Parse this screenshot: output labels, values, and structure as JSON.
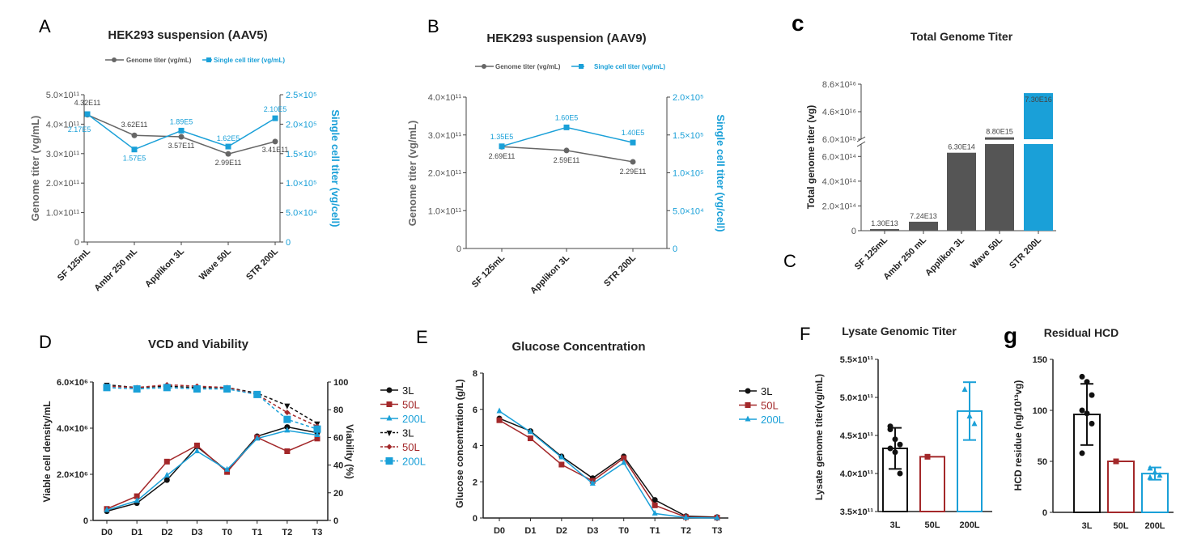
{
  "colors": {
    "gray": "#666666",
    "blue": "#1aa0d8",
    "dark": "#111111",
    "red": "#a3282a",
    "bar": "#555555"
  },
  "chart_data": [
    {
      "id": "A",
      "panel_label": "A",
      "type": "line",
      "title": "HEK293 suspension (AAV5)",
      "categories": [
        "SF 125mL",
        "Ambr 250 mL",
        "Applikon 3L",
        "Wave 50L",
        "STR 200L"
      ],
      "ylabel": "Genome titer (vg/mL)",
      "y2label": "Single cell titer (vg/cell)",
      "ylim": [
        0,
        500000000000.0
      ],
      "y2lim": [
        0,
        250000.0
      ],
      "yticks": [
        "0",
        "1.0×10¹¹",
        "2.0×10¹¹",
        "3.0×10¹¹",
        "4.0×10¹¹",
        "5.0×10¹¹"
      ],
      "y2ticks": [
        "0",
        "5.0×10⁴",
        "1.0×10⁵",
        "1.5×10⁵",
        "2.0×10⁵",
        "2.5×10⁵"
      ],
      "series": [
        {
          "name": "Genome titer (vg/mL)",
          "axis": "left",
          "values": [
            432000000000.0,
            362000000000.0,
            357000000000.0,
            299000000000.0,
            341000000000.0
          ],
          "labels": [
            "4.32E11",
            "3.62E11",
            "3.57E11",
            "2.99E11",
            "3.41E11"
          ]
        },
        {
          "name": "Single cell titer (vg/mL)",
          "axis": "right",
          "values": [
            217000.0,
            157000.0,
            189000.0,
            162000.0,
            210000.0
          ],
          "labels": [
            "2.17E5",
            "1.57E5",
            "1.89E5",
            "1.62E5",
            "2.10E5"
          ]
        }
      ]
    },
    {
      "id": "B",
      "panel_label": "B",
      "type": "line",
      "title": "HEK293 suspension (AAV9)",
      "categories": [
        "SF 125mL",
        "Applikon 3L",
        "STR 200L"
      ],
      "ylabel": "Genome titer (vg/mL)",
      "y2label": "Single cell titer (vg/cell)",
      "ylim": [
        0,
        400000000000.0
      ],
      "y2lim": [
        0,
        200000.0
      ],
      "yticks": [
        "0",
        "1.0×10¹¹",
        "2.0×10¹¹",
        "3.0×10¹¹",
        "4.0×10¹¹"
      ],
      "y2ticks": [
        "0",
        "5.0×10⁴",
        "1.0×10⁵",
        "1.5×10⁵",
        "2.0×10⁵"
      ],
      "series": [
        {
          "name": "Genome titer (vg/mL)",
          "axis": "left",
          "values": [
            269000000000.0,
            259000000000.0,
            229000000000.0
          ],
          "labels": [
            "2.69E11",
            "2.59E11",
            "2.29E11"
          ]
        },
        {
          "name": "Single cell titer (vg/mL)",
          "axis": "right",
          "values": [
            135000.0,
            160000.0,
            140000.0
          ],
          "labels": [
            "1.35E5",
            "1.60E5",
            "1.40E5"
          ]
        }
      ]
    },
    {
      "id": "C",
      "panel_label": "c",
      "panel_label2": "C",
      "type": "bar",
      "title": "Total Genome Titer",
      "categories": [
        "SF 125mL",
        "Ambr 250 mL",
        "Applikon 3L",
        "Wave 50L",
        "STR 200L"
      ],
      "ylabel": "Total genome titer (vg)",
      "values": [
        13000000000000.0,
        72400000000000.0,
        630000000000000.0,
        8800000000000000.0,
        7.3e+16
      ],
      "labels": [
        "1.30E13",
        "7.24E13",
        "6.30E14",
        "8.80E15",
        "7.30E16"
      ],
      "lower_ticks": [
        "0",
        "2.0×10¹⁴",
        "4.0×10¹⁴",
        "6.0×10¹⁴"
      ],
      "upper_ticks": [
        "6.0×10¹⁵",
        "4.6×10¹⁶",
        "8.6×10¹⁶"
      ],
      "axis_break": true
    },
    {
      "id": "D",
      "panel_label": "D",
      "type": "line",
      "title": "VCD and Viability",
      "categories": [
        "D0",
        "D1",
        "D2",
        "D3",
        "T0",
        "T1",
        "T2",
        "T3"
      ],
      "ylabel": "Viable cell density/mL",
      "y2label": "Viability (%)",
      "ylim": [
        0,
        6000000.0
      ],
      "y2lim": [
        0,
        100
      ],
      "yticks": [
        "0",
        "2.0×10⁶",
        "4.0×10⁶",
        "6.0×10⁶"
      ],
      "y2ticks": [
        "0",
        "20",
        "40",
        "60",
        "80",
        "100"
      ],
      "series": [
        {
          "name": "3L",
          "axis": "left",
          "values": [
            400000.0,
            750000.0,
            1750000.0,
            3200000.0,
            2150000.0,
            3650000.0,
            4050000.0,
            3800000.0
          ]
        },
        {
          "name": "50L",
          "axis": "left",
          "values": [
            500000.0,
            1050000.0,
            2550000.0,
            3250000.0,
            2100000.0,
            3600000.0,
            3000000.0,
            3550000.0
          ]
        },
        {
          "name": "200L",
          "axis": "left",
          "values": [
            450000.0,
            850000.0,
            1950000.0,
            3000000.0,
            2200000.0,
            3550000.0,
            3900000.0,
            3700000.0
          ]
        },
        {
          "name": "3L",
          "axis": "right",
          "values": [
            98,
            96,
            97,
            96,
            96,
            92,
            83,
            70
          ]
        },
        {
          "name": "50L",
          "axis": "right",
          "values": [
            97,
            96,
            98,
            97,
            96,
            91,
            78,
            68
          ]
        },
        {
          "name": "200L",
          "axis": "right",
          "values": [
            96,
            95,
            96,
            95,
            95,
            91,
            73,
            66
          ]
        }
      ]
    },
    {
      "id": "E",
      "panel_label": "E",
      "type": "line",
      "title": "Glucose Concentration",
      "categories": [
        "D0",
        "D1",
        "D2",
        "D3",
        "T0",
        "T1",
        "T2",
        "T3"
      ],
      "ylabel": "Glucose concentration (g/L)",
      "ylim": [
        0,
        8
      ],
      "yticks": [
        "0",
        "2",
        "4",
        "6",
        "8"
      ],
      "series": [
        {
          "name": "3L",
          "values": [
            5.5,
            4.8,
            3.4,
            2.2,
            3.4,
            1.0,
            0.1,
            0.05
          ]
        },
        {
          "name": "50L",
          "values": [
            5.4,
            4.4,
            2.95,
            2.05,
            3.3,
            0.7,
            0.05,
            0.02
          ]
        },
        {
          "name": "200L",
          "values": [
            5.9,
            4.75,
            3.35,
            1.9,
            3.05,
            0.25,
            0.02,
            0.0
          ]
        }
      ]
    },
    {
      "id": "F",
      "panel_label": "F",
      "type": "bar",
      "title": "Lysate Genomic Titer",
      "categories": [
        "3L",
        "50L",
        "200L"
      ],
      "ylabel": "Lysate genome titer(vg/mL)",
      "ylim": [
        350000000000.0,
        550000000000.0
      ],
      "yticks": [
        "3.5×10¹¹",
        "4.0×10¹¹",
        "4.5×10¹¹",
        "5.0×10¹¹",
        "5.5×10¹¹"
      ],
      "values": [
        433000000000.0,
        422000000000.0,
        482000000000.0
      ],
      "errors": [
        27000000000.0,
        0.0,
        38000000000.0
      ],
      "points": [
        [
          462000000000.0,
          445000000000.0,
          438000000000.0,
          433000000000.0,
          428000000000.0,
          400000000000.0,
          458000000000.0
        ],
        [
          422000000000.0
        ],
        [
          510000000000.0,
          475000000000.0,
          465000000000.0
        ]
      ]
    },
    {
      "id": "G",
      "panel_label": "g",
      "type": "bar",
      "title": "Residual HCD",
      "categories": [
        "3L",
        "50L",
        "200L"
      ],
      "ylabel": "HCD residue (ng/10¹³vg)",
      "ylim": [
        0,
        150
      ],
      "yticks": [
        "0",
        "50",
        "100",
        "150"
      ],
      "values": [
        96,
        50,
        38
      ],
      "errors": [
        30,
        1,
        6
      ],
      "points": [
        [
          133,
          128,
          115,
          100,
          97,
          87,
          58
        ],
        [
          50
        ],
        [
          43,
          39,
          36,
          34
        ]
      ]
    }
  ]
}
